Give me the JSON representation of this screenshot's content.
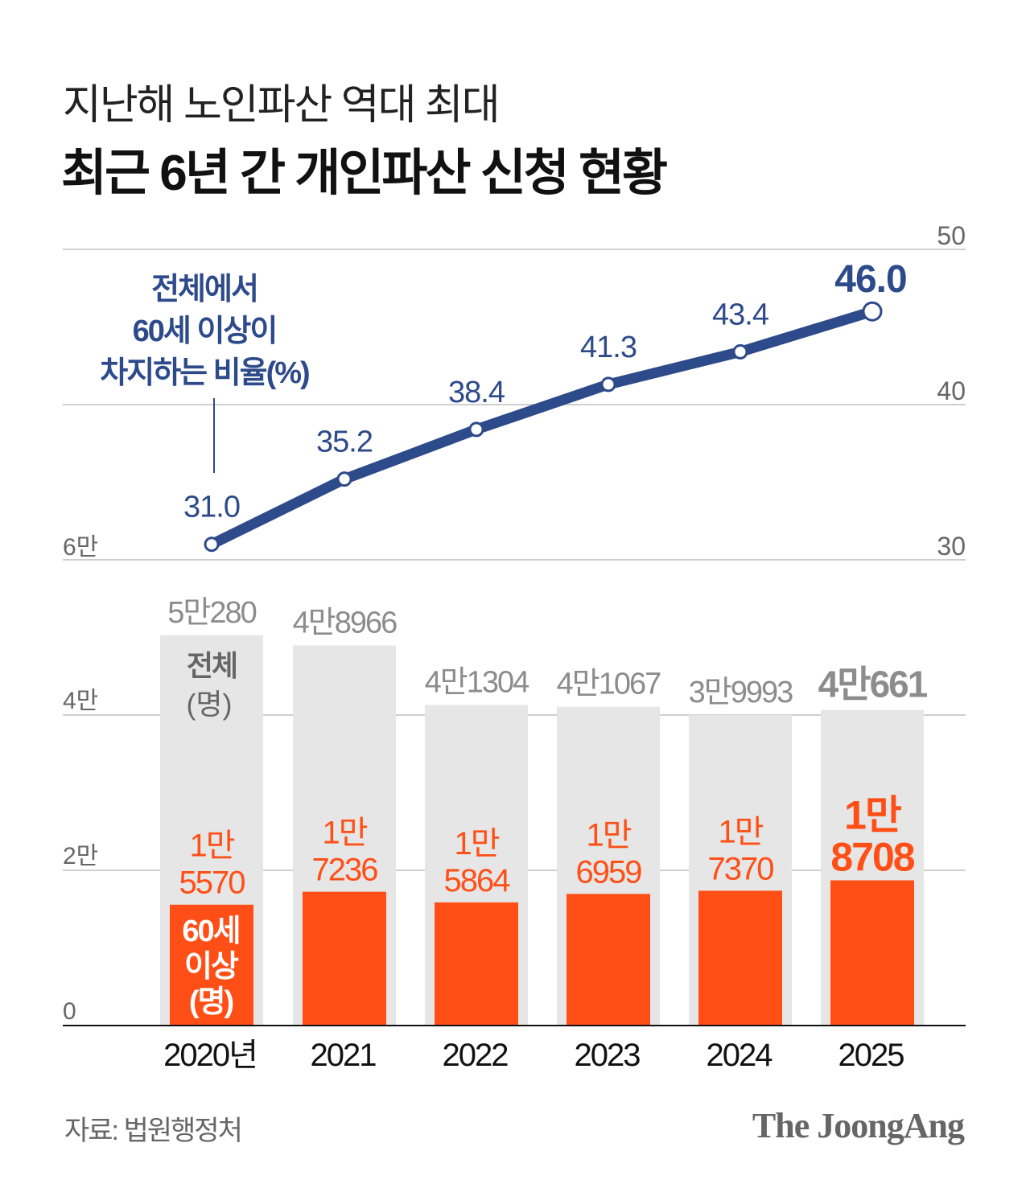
{
  "title": "지난해 노인파산 역대 최대",
  "subtitle": "최근 6년 간 개인파산 신청 현황",
  "source": "자료: 법원행정처",
  "logo": "The JoongAng",
  "colors": {
    "line": "#2d4a8a",
    "older_bar": "#ff4f17",
    "total_bar": "#e6e6e6",
    "gray_text": "#8c8c8c",
    "grid": "#cfcfcf"
  },
  "chart_data": [
    {
      "type": "bar",
      "categories": [
        "2020년",
        "2021",
        "2022",
        "2023",
        "2024",
        "2025"
      ],
      "series": [
        {
          "name": "전체 (명)",
          "values": [
            50280,
            48966,
            41304,
            41067,
            39993,
            40661
          ],
          "labels": [
            "5만280",
            "4만8966",
            "4만1304",
            "4만1067",
            "3만9993",
            "4만661"
          ]
        },
        {
          "name": "60세 이상 (명)",
          "values": [
            15570,
            17236,
            15864,
            16959,
            17370,
            18708
          ],
          "labels": [
            [
              "1만",
              "5570"
            ],
            [
              "1만",
              "7236"
            ],
            [
              "1만",
              "5864"
            ],
            [
              "1만",
              "6959"
            ],
            [
              "1만",
              "7370"
            ],
            [
              "1만",
              "8708"
            ]
          ]
        }
      ],
      "total_annotation": [
        "전체",
        "(명)"
      ],
      "older_annotation": [
        "60세",
        "이상",
        "(명)"
      ],
      "y_ticks": [
        "0",
        "2만",
        "4만",
        "6만"
      ],
      "ylim": [
        0,
        60000
      ],
      "grid": true
    },
    {
      "type": "line",
      "categories": [
        "2020년",
        "2021",
        "2022",
        "2023",
        "2024",
        "2025"
      ],
      "series": [
        {
          "name": "전체에서 60세 이상이 차지하는 비율(%)",
          "values": [
            31.0,
            35.2,
            38.4,
            41.3,
            43.4,
            46.0
          ],
          "labels": [
            "31.0",
            "35.2",
            "38.4",
            "41.3",
            "43.4",
            "46.0"
          ]
        }
      ],
      "annotation": [
        "전체에서",
        "60세 이상이",
        "차지하는 비율(%)"
      ],
      "y_ticks": [
        "30",
        "40",
        "50"
      ],
      "ylim": [
        30,
        50
      ],
      "y_axis_side": "right",
      "grid": true
    }
  ]
}
